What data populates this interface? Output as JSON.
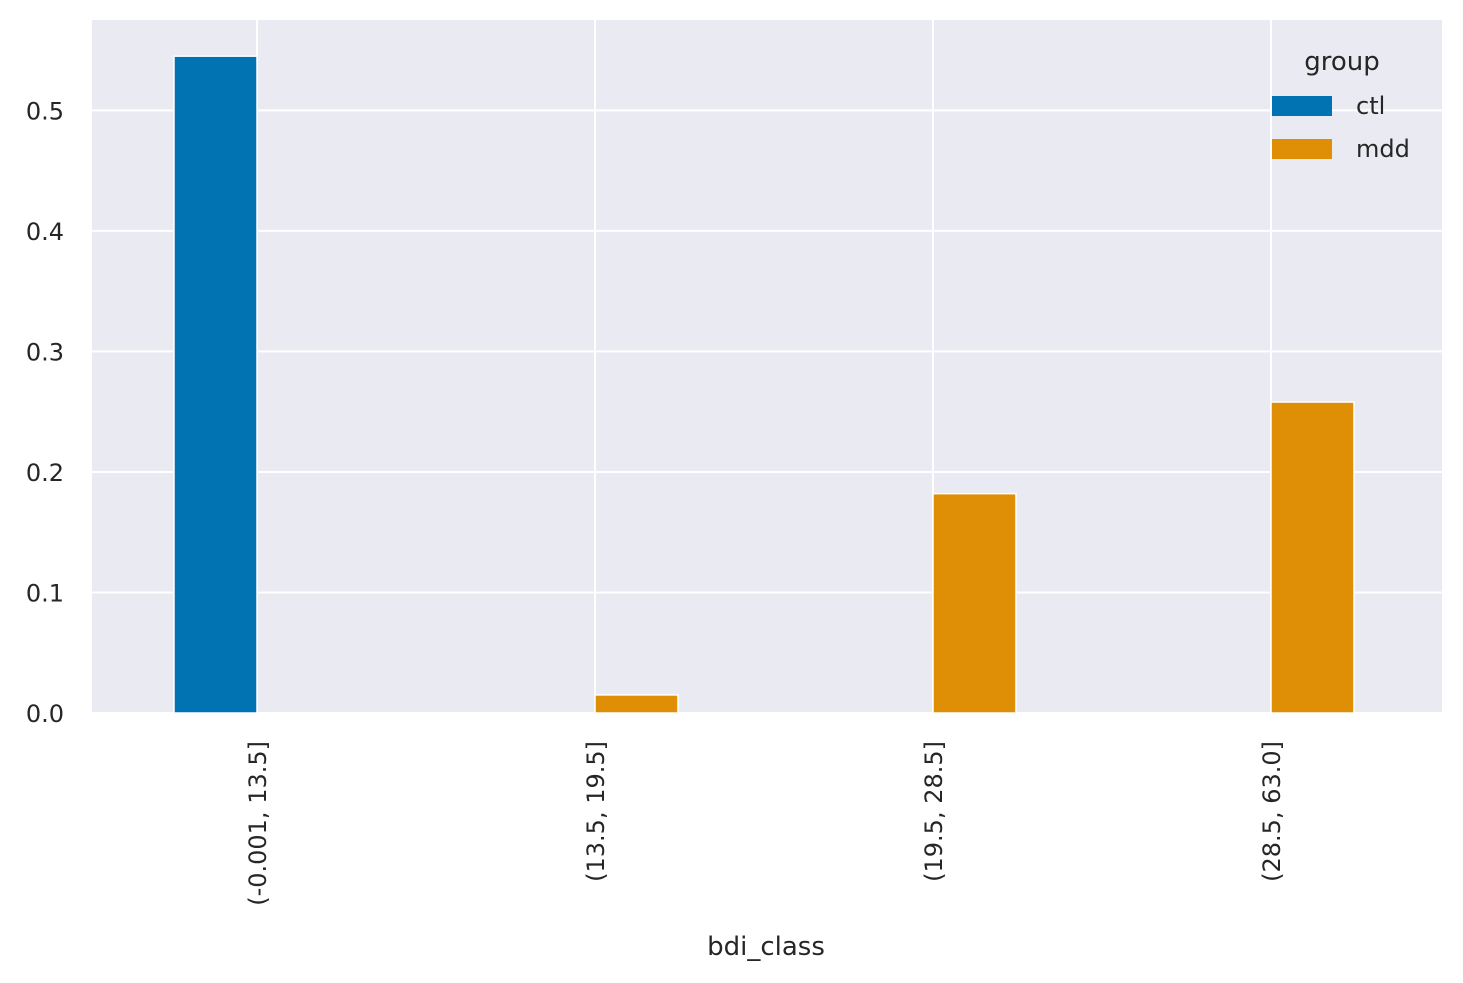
{
  "chart_data": {
    "type": "bar",
    "title": "",
    "xlabel": "bdi_class",
    "ylabel": "",
    "categories": [
      "(-0.001, 13.5]",
      "(13.5, 19.5]",
      "(19.5, 28.5]",
      "(28.5, 63.0]"
    ],
    "series": [
      {
        "name": "ctl",
        "color": "#0173b2",
        "values": [
          0.545,
          0.0,
          0.0,
          0.0
        ]
      },
      {
        "name": "mdd",
        "color": "#de8f05",
        "values": [
          0.0,
          0.015,
          0.182,
          0.258
        ]
      }
    ],
    "ylim": [
      0,
      0.575
    ],
    "yticks": [
      0.0,
      0.1,
      0.2,
      0.3,
      0.4,
      0.5
    ],
    "ytick_labels": [
      "0.0",
      "0.1",
      "0.2",
      "0.3",
      "0.4",
      "0.5"
    ],
    "grid": true,
    "background_color": "#eaeaf2",
    "grid_color": "#ffffff",
    "legend": {
      "title": "group",
      "placement": "top-right"
    }
  }
}
